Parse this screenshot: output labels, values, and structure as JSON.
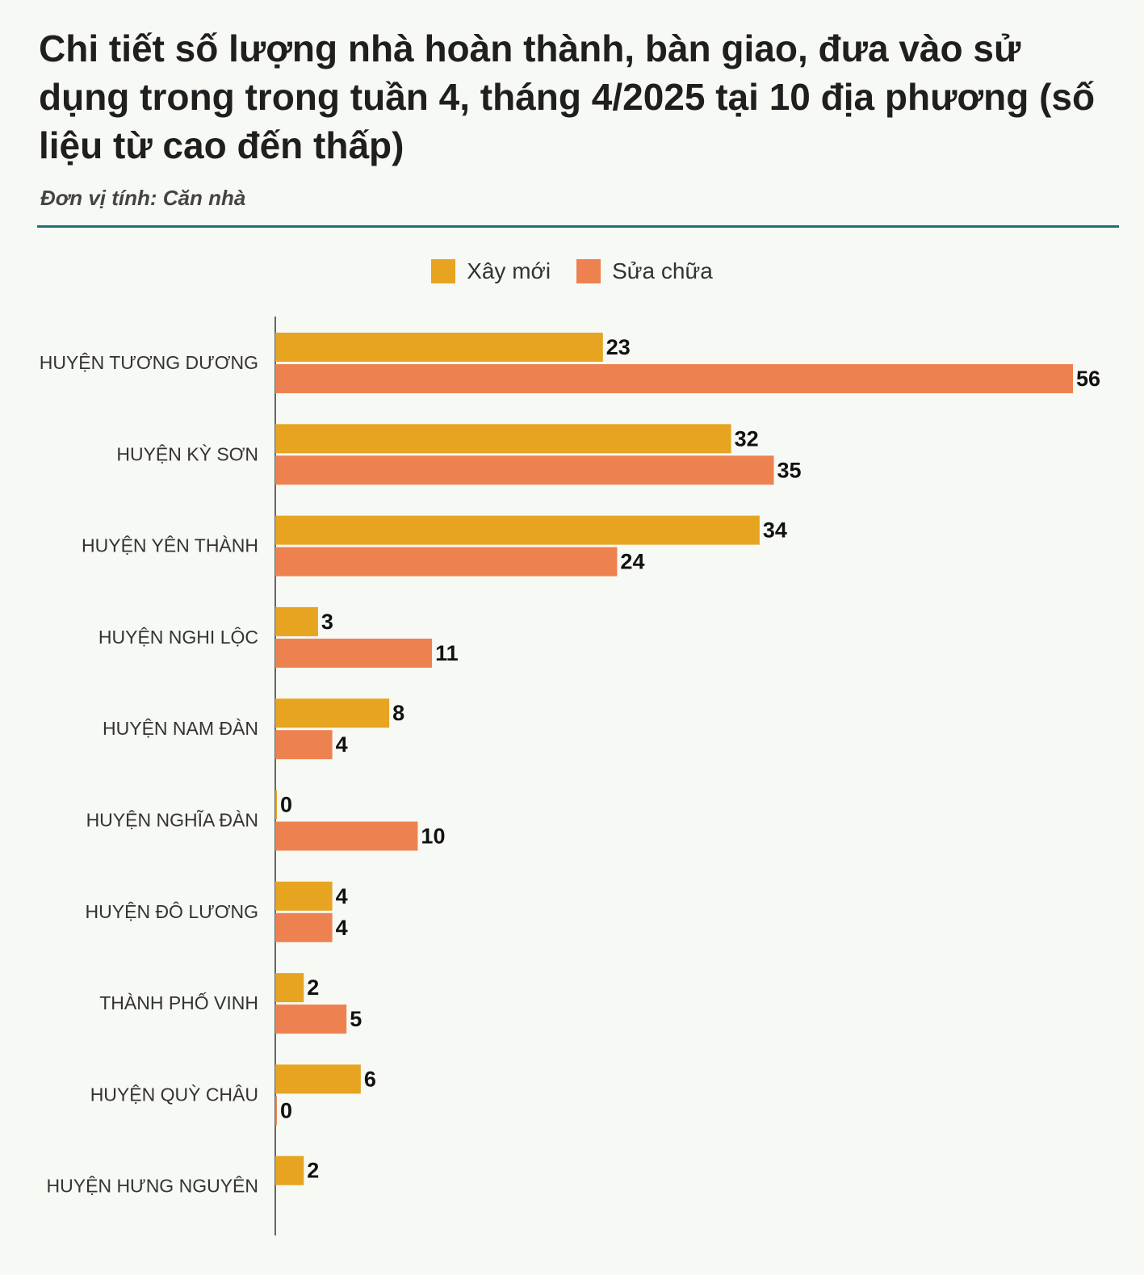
{
  "header": {
    "title": "Chi tiết số lượng nhà hoàn thành, bàn giao, đưa vào sử dụng trong trong tuần 4, tháng 4/2025 tại 10 địa phương (số liệu từ cao đến thấp)",
    "subtitle": "Đơn vị tính: Căn nhà"
  },
  "chart_data": {
    "type": "bar",
    "orientation": "horizontal",
    "categories": [
      "HUYỆN TƯƠNG DƯƠNG",
      "HUYỆN KỲ SƠN",
      "HUYỆN YÊN THÀNH",
      "HUYỆN NGHI LỘC",
      "HUYỆN NAM ĐÀN",
      "HUYỆN NGHĨA ĐÀN",
      "HUYỆN ĐÔ LƯƠNG",
      "THÀNH PHỐ VINH",
      "HUYỆN QUỲ CHÂU",
      "HUYỆN HƯNG NGUYÊN"
    ],
    "series": [
      {
        "name": "Xây mới",
        "color": "#e6a421",
        "values": [
          23,
          32,
          34,
          3,
          8,
          0,
          4,
          2,
          6,
          2
        ]
      },
      {
        "name": "Sửa chữa",
        "color": "#ed8250",
        "values": [
          56,
          35,
          24,
          11,
          4,
          10,
          4,
          5,
          0,
          null
        ]
      }
    ],
    "xlim": [
      0,
      56
    ],
    "grid": false,
    "legend_position": "top-center",
    "data_labels": true
  }
}
